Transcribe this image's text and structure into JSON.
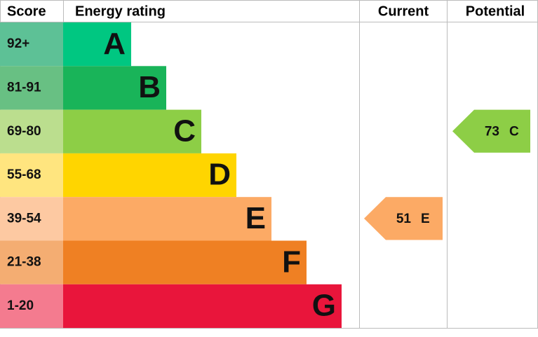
{
  "header": {
    "score": "Score",
    "rating": "Energy rating",
    "current": "Current",
    "potential": "Potential"
  },
  "bands": [
    {
      "score": "92+",
      "letter": "A",
      "color": "#00c781",
      "score_color": "#5dc196"
    },
    {
      "score": "81-91",
      "letter": "B",
      "color": "#19b459",
      "score_color": "#68c083"
    },
    {
      "score": "69-80",
      "letter": "C",
      "color": "#8dce46",
      "score_color": "#bbde8e"
    },
    {
      "score": "55-68",
      "letter": "D",
      "color": "#ffd500",
      "score_color": "#ffe57f"
    },
    {
      "score": "39-54",
      "letter": "E",
      "color": "#fcaa65",
      "score_color": "#fdc9a2"
    },
    {
      "score": "21-38",
      "letter": "F",
      "color": "#ef8023",
      "score_color": "#f4ad72"
    },
    {
      "score": "1-20",
      "letter": "G",
      "color": "#e9153b",
      "score_color": "#f47b8f"
    }
  ],
  "current": {
    "value": 51,
    "letter": "E"
  },
  "potential": {
    "value": 73,
    "letter": "C"
  }
}
